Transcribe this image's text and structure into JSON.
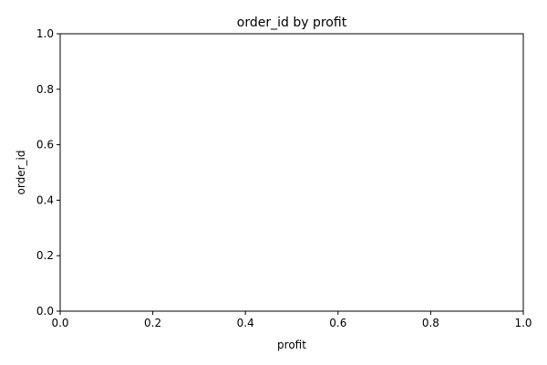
{
  "chart_data": {
    "type": "scatter",
    "title": "order_id by profit",
    "xlabel": "profit",
    "ylabel": "order_id",
    "xlim": [
      0,
      1
    ],
    "ylim": [
      0,
      1
    ],
    "xticks": [
      "0.0",
      "0.2",
      "0.4",
      "0.6",
      "0.8",
      "1.0"
    ],
    "yticks": [
      "0.0",
      "0.2",
      "0.4",
      "0.6",
      "0.8",
      "1.0"
    ],
    "x": [],
    "y": [],
    "grid": false,
    "colors": {
      "axis": "#000000",
      "background": "#ffffff"
    }
  }
}
